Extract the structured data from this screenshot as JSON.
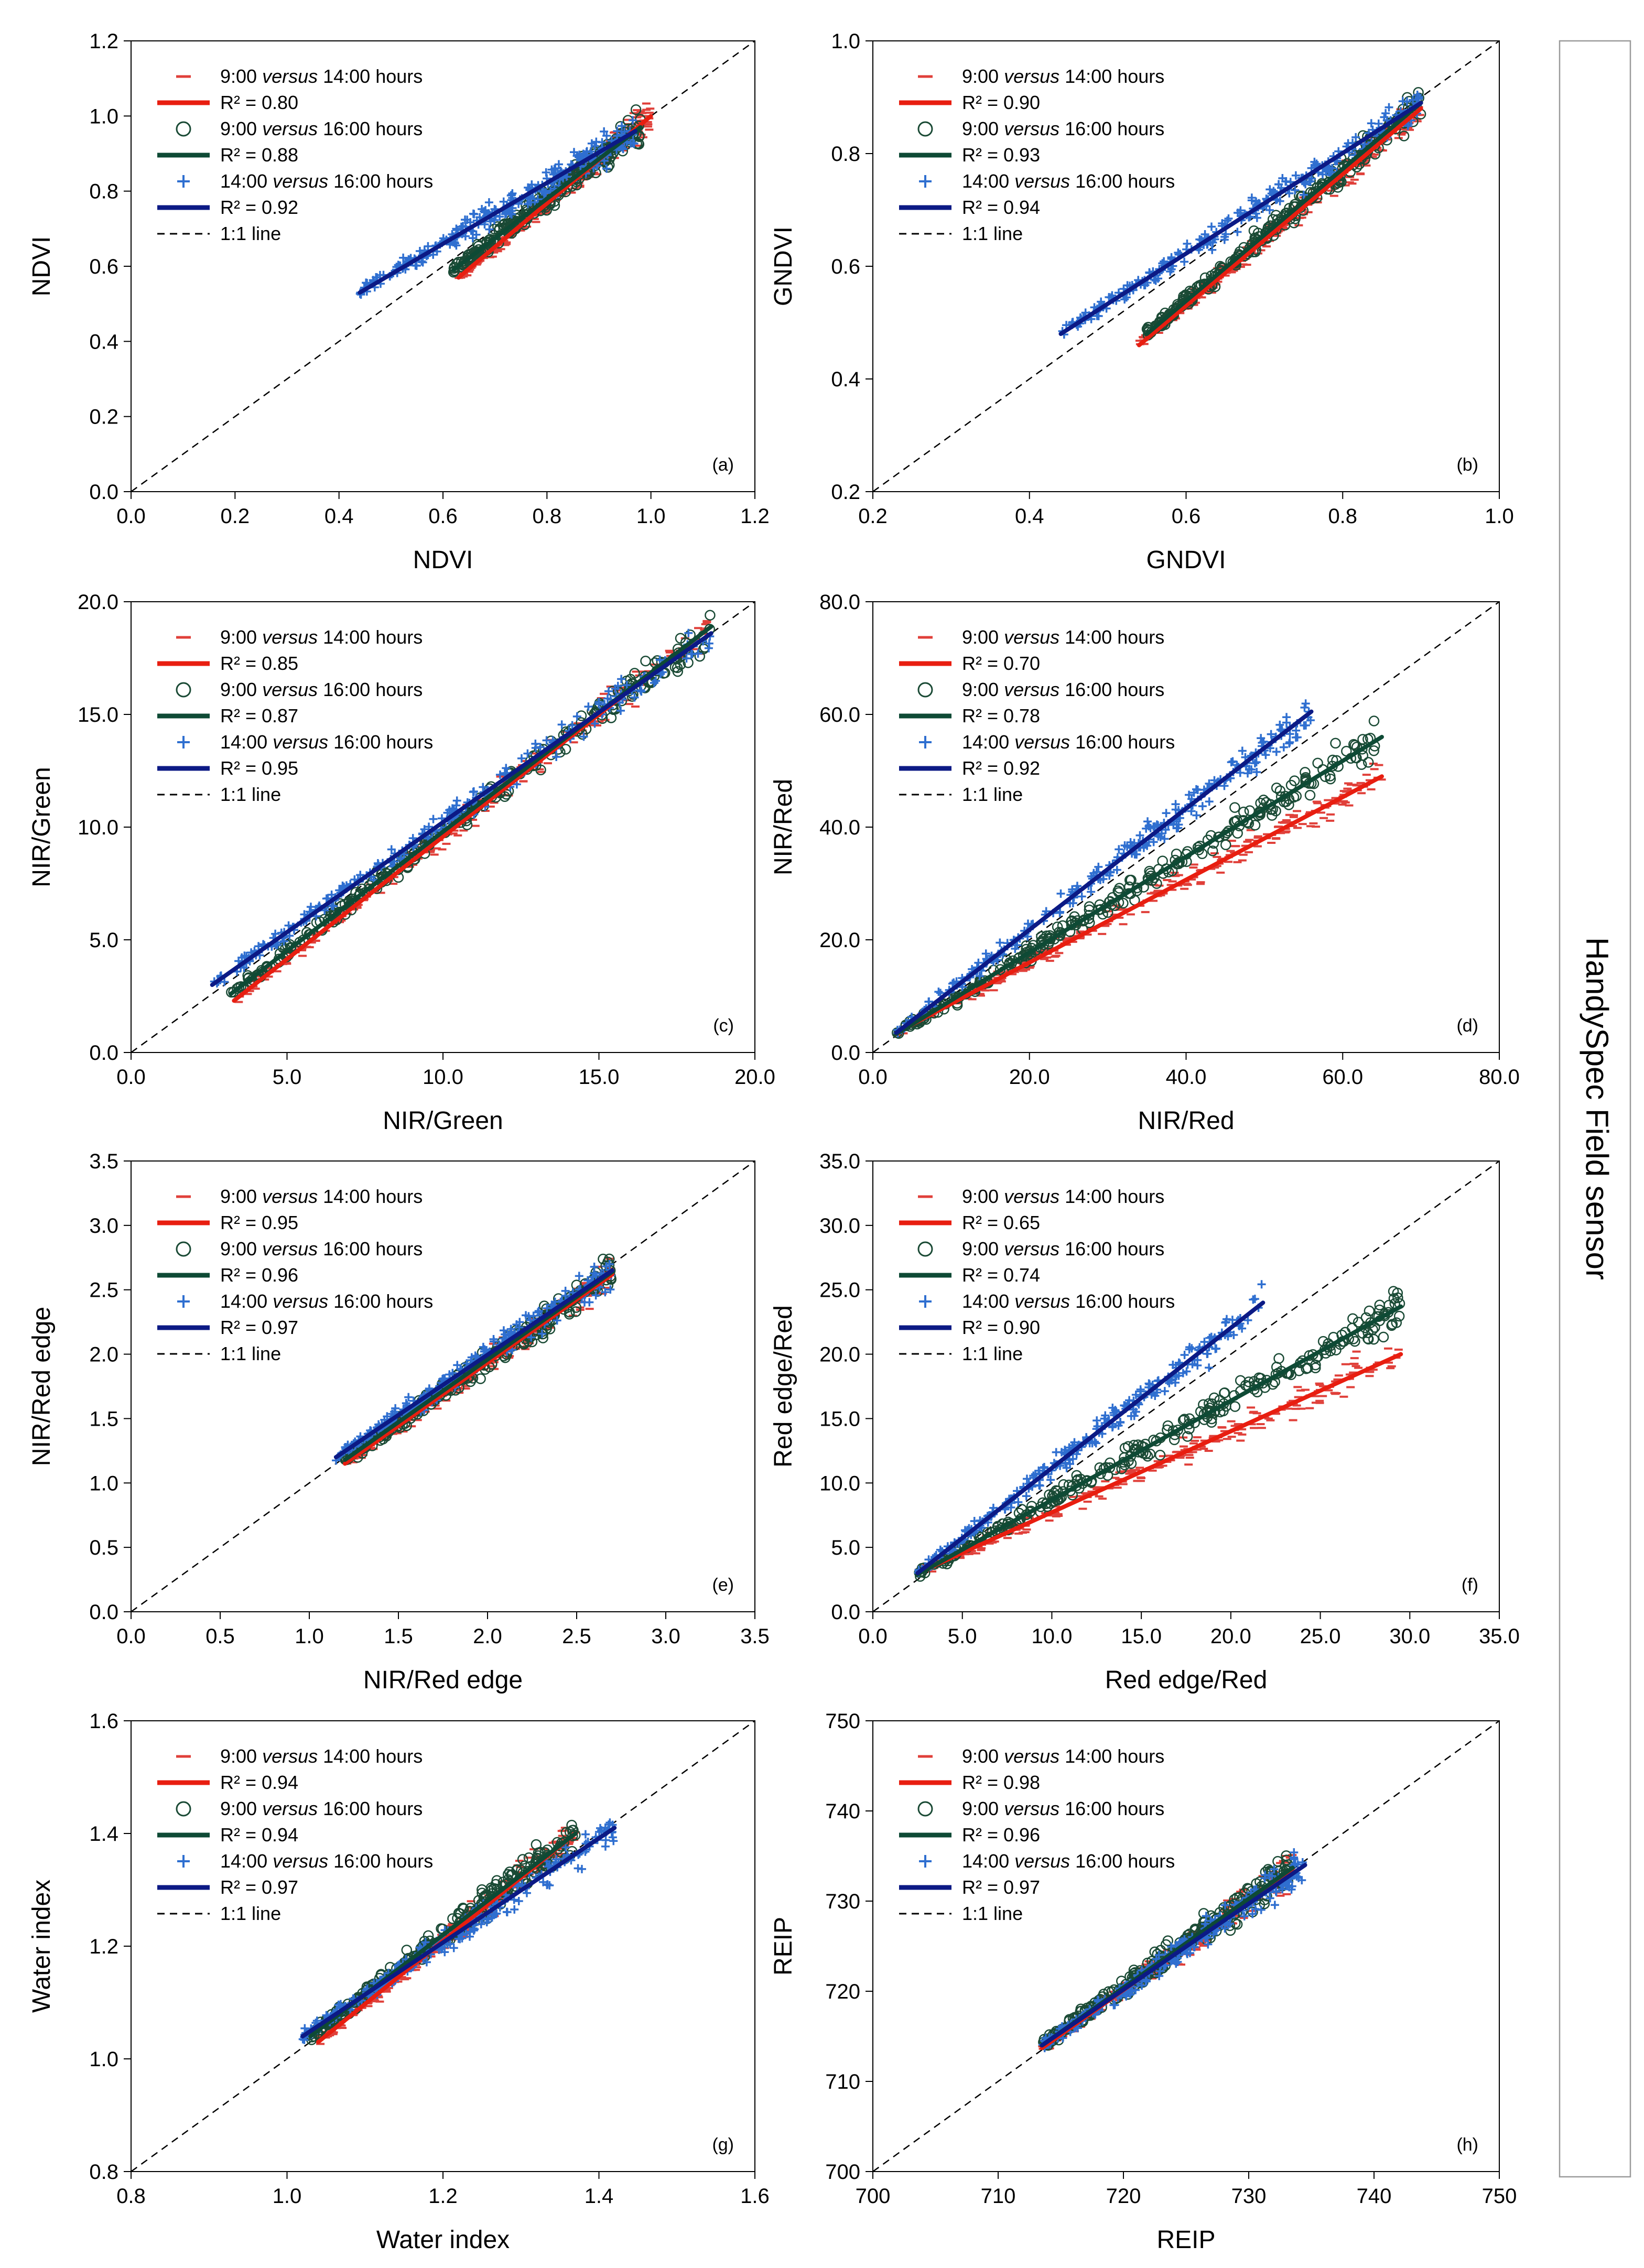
{
  "side_label": "HandySpec Field sensor",
  "colors": {
    "series_a_marker": "#e0403a",
    "series_a_line": "#e81e10",
    "series_b_marker": "#1a4a35",
    "series_b_line": "#0e4a35",
    "series_c_marker": "#2f6fd0",
    "series_c_line": "#0c1a85",
    "one_to_one": "#000000"
  },
  "legend_symbols": {
    "a": "dash",
    "b": "circle",
    "c": "plus"
  },
  "chart_data": [
    {
      "id": "a",
      "type": "scatter",
      "panel_label": "(a)",
      "xlabel": "NDVI",
      "ylabel": "NDVI",
      "xlim": [
        0.0,
        1.2
      ],
      "ylim": [
        0.0,
        1.2
      ],
      "xticks": [
        "0.0",
        "0.2",
        "0.4",
        "0.6",
        "0.8",
        "1.0",
        "1.2"
      ],
      "yticks": [
        "0.0",
        "0.2",
        "0.4",
        "0.6",
        "0.8",
        "1.0",
        "1.2"
      ],
      "series": [
        {
          "name": "9:00 versus 14:00 hours",
          "r2_label": "R² = 0.80",
          "fit": [
            [
              0.63,
              0.57
            ],
            [
              1.0,
              1.0
            ]
          ]
        },
        {
          "name": "9:00 versus 16:00 hours",
          "r2_label": "R² = 0.88",
          "fit": [
            [
              0.62,
              0.59
            ],
            [
              0.98,
              0.97
            ]
          ]
        },
        {
          "name": "14:00 versus 16:00 hours",
          "r2_label": "R² = 0.92",
          "fit": [
            [
              0.44,
              0.53
            ],
            [
              0.97,
              0.96
            ]
          ]
        }
      ],
      "one_to_one_label": "1:1 line"
    },
    {
      "id": "b",
      "type": "scatter",
      "panel_label": "(b)",
      "xlabel": "GNDVI",
      "ylabel": "GNDVI",
      "xlim": [
        0.2,
        1.0
      ],
      "ylim": [
        0.2,
        1.0
      ],
      "xticks": [
        "0.2",
        "0.4",
        "0.6",
        "0.8",
        "1.0"
      ],
      "yticks": [
        "0.2",
        "0.4",
        "0.6",
        "0.8",
        "1.0"
      ],
      "series": [
        {
          "name": "9:00 versus 14:00 hours",
          "r2_label": "R² = 0.90",
          "fit": [
            [
              0.54,
              0.46
            ],
            [
              0.9,
              0.88
            ]
          ]
        },
        {
          "name": "9:00 versus 16:00 hours",
          "r2_label": "R² = 0.93",
          "fit": [
            [
              0.55,
              0.48
            ],
            [
              0.9,
              0.89
            ]
          ]
        },
        {
          "name": "14:00 versus 16:00 hours",
          "r2_label": "R² = 0.94",
          "fit": [
            [
              0.44,
              0.48
            ],
            [
              0.9,
              0.89
            ]
          ]
        }
      ],
      "one_to_one_label": "1:1 line"
    },
    {
      "id": "c",
      "type": "scatter",
      "panel_label": "(c)",
      "xlabel": "NIR/Green",
      "ylabel": "NIR/Green",
      "xlim": [
        0.0,
        20.0
      ],
      "ylim": [
        0.0,
        20.0
      ],
      "xticks": [
        "0.0",
        "5.0",
        "10.0",
        "15.0",
        "20.0"
      ],
      "yticks": [
        "0.0",
        "5.0",
        "10.0",
        "15.0",
        "20.0"
      ],
      "series": [
        {
          "name": "9:00 versus 14:00 hours",
          "r2_label": "R² = 0.85",
          "fit": [
            [
              3.3,
              2.3
            ],
            [
              18.5,
              18.8
            ]
          ]
        },
        {
          "name": "9:00 versus 16:00 hours",
          "r2_label": "R² = 0.87",
          "fit": [
            [
              3.2,
              2.6
            ],
            [
              18.6,
              18.9
            ]
          ]
        },
        {
          "name": "14:00 versus 16:00 hours",
          "r2_label": "R² = 0.95",
          "fit": [
            [
              2.6,
              3.0
            ],
            [
              18.6,
              18.6
            ]
          ]
        }
      ],
      "one_to_one_label": "1:1 line"
    },
    {
      "id": "d",
      "type": "scatter",
      "panel_label": "(d)",
      "xlabel": "NIR/Red",
      "ylabel": "NIR/Red",
      "xlim": [
        0.0,
        80.0
      ],
      "ylim": [
        0.0,
        80.0
      ],
      "xticks": [
        "0.0",
        "20.0",
        "40.0",
        "60.0",
        "80.0"
      ],
      "yticks": [
        "0.0",
        "20.0",
        "40.0",
        "60.0",
        "80.0"
      ],
      "series": [
        {
          "name": "9:00 versus 14:00 hours",
          "r2_label": "R² = 0.70",
          "fit": [
            [
              3.0,
              3.5
            ],
            [
              65.0,
              49.0
            ]
          ]
        },
        {
          "name": "9:00 versus 16:00 hours",
          "r2_label": "R² = 0.78",
          "fit": [
            [
              3.0,
              3.3
            ],
            [
              65.0,
              56.0
            ]
          ]
        },
        {
          "name": "14:00 versus 16:00 hours",
          "r2_label": "R² = 0.92",
          "fit": [
            [
              3.0,
              3.5
            ],
            [
              56.0,
              60.5
            ]
          ]
        }
      ],
      "one_to_one_label": "1:1 line"
    },
    {
      "id": "e",
      "type": "scatter",
      "panel_label": "(e)",
      "xlabel": "NIR/Red edge",
      "ylabel": "NIR/Red edge",
      "xlim": [
        0.0,
        3.5
      ],
      "ylim": [
        0.0,
        3.5
      ],
      "xticks": [
        "0.0",
        "0.5",
        "1.0",
        "1.5",
        "2.0",
        "2.5",
        "3.0",
        "3.5"
      ],
      "yticks": [
        "0.0",
        "0.5",
        "1.0",
        "1.5",
        "2.0",
        "2.5",
        "3.0",
        "3.5"
      ],
      "series": [
        {
          "name": "9:00 versus 14:00 hours",
          "r2_label": "R² = 0.95",
          "fit": [
            [
              1.2,
              1.15
            ],
            [
              2.7,
              2.62
            ]
          ]
        },
        {
          "name": "9:00 versus 16:00 hours",
          "r2_label": "R² = 0.96",
          "fit": [
            [
              1.2,
              1.18
            ],
            [
              2.7,
              2.64
            ]
          ]
        },
        {
          "name": "14:00 versus 16:00 hours",
          "r2_label": "R² = 0.97",
          "fit": [
            [
              1.15,
              1.2
            ],
            [
              2.7,
              2.65
            ]
          ]
        }
      ],
      "one_to_one_label": "1:1 line"
    },
    {
      "id": "f",
      "type": "scatter",
      "panel_label": "(f)",
      "xlabel": "Red edge/Red",
      "ylabel": "Red edge/Red",
      "xlim": [
        0.0,
        35.0
      ],
      "ylim": [
        0.0,
        35.0
      ],
      "xticks": [
        "0.0",
        "5.0",
        "10.0",
        "15.0",
        "20.0",
        "25.0",
        "30.0",
        "35.0"
      ],
      "yticks": [
        "0.0",
        "5.0",
        "10.0",
        "15.0",
        "20.0",
        "25.0",
        "30.0",
        "35.0"
      ],
      "series": [
        {
          "name": "9:00 versus 14:00 hours",
          "r2_label": "R² = 0.65",
          "fit": [
            [
              2.5,
              3.0
            ],
            [
              29.5,
              20.0
            ]
          ]
        },
        {
          "name": "9:00 versus 16:00 hours",
          "r2_label": "R² = 0.74",
          "fit": [
            [
              2.5,
              2.9
            ],
            [
              29.5,
              23.7
            ]
          ]
        },
        {
          "name": "14:00 versus 16:00 hours",
          "r2_label": "R² = 0.90",
          "fit": [
            [
              2.5,
              3.0
            ],
            [
              21.8,
              24.0
            ]
          ]
        }
      ],
      "one_to_one_label": "1:1 line"
    },
    {
      "id": "g",
      "type": "scatter",
      "panel_label": "(g)",
      "xlabel": "Water index",
      "ylabel": "Water index",
      "xlim": [
        0.8,
        1.6
      ],
      "ylim": [
        0.8,
        1.6
      ],
      "xticks": [
        "0.8",
        "1.0",
        "1.2",
        "1.4",
        "1.6"
      ],
      "yticks": [
        "0.8",
        "1.0",
        "1.2",
        "1.4",
        "1.6"
      ],
      "series": [
        {
          "name": "9:00 versus 14:00 hours",
          "r2_label": "R² = 0.94",
          "fit": [
            [
              1.04,
              1.03
            ],
            [
              1.37,
              1.4
            ]
          ]
        },
        {
          "name": "9:00 versus 16:00 hours",
          "r2_label": "R² = 0.94",
          "fit": [
            [
              1.03,
              1.04
            ],
            [
              1.37,
              1.4
            ]
          ]
        },
        {
          "name": "14:00 versus 16:00 hours",
          "r2_label": "R² = 0.97",
          "fit": [
            [
              1.02,
              1.04
            ],
            [
              1.42,
              1.41
            ]
          ]
        }
      ],
      "one_to_one_label": "1:1 line"
    },
    {
      "id": "h",
      "type": "scatter",
      "panel_label": "(h)",
      "xlabel": "REIP",
      "ylabel": "REIP",
      "xlim": [
        700,
        750
      ],
      "ylim": [
        700,
        750
      ],
      "xticks": [
        "700",
        "710",
        "720",
        "730",
        "740",
        "750"
      ],
      "yticks": [
        "700",
        "710",
        "720",
        "730",
        "740",
        "750"
      ],
      "series": [
        {
          "name": "9:00 versus 14:00 hours",
          "r2_label": "R² = 0.98",
          "fit": [
            [
              713.5,
              713.7
            ],
            [
              733.5,
              733.5
            ]
          ]
        },
        {
          "name": "9:00 versus 16:00 hours",
          "r2_label": "R² = 0.96",
          "fit": [
            [
              713.5,
              714.0
            ],
            [
              733.5,
              733.7
            ]
          ]
        },
        {
          "name": "14:00 versus 16:00 hours",
          "r2_label": "R² = 0.97",
          "fit": [
            [
              713.5,
              714.0
            ],
            [
              734.5,
              734.0
            ]
          ]
        }
      ],
      "one_to_one_label": "1:1 line"
    }
  ]
}
